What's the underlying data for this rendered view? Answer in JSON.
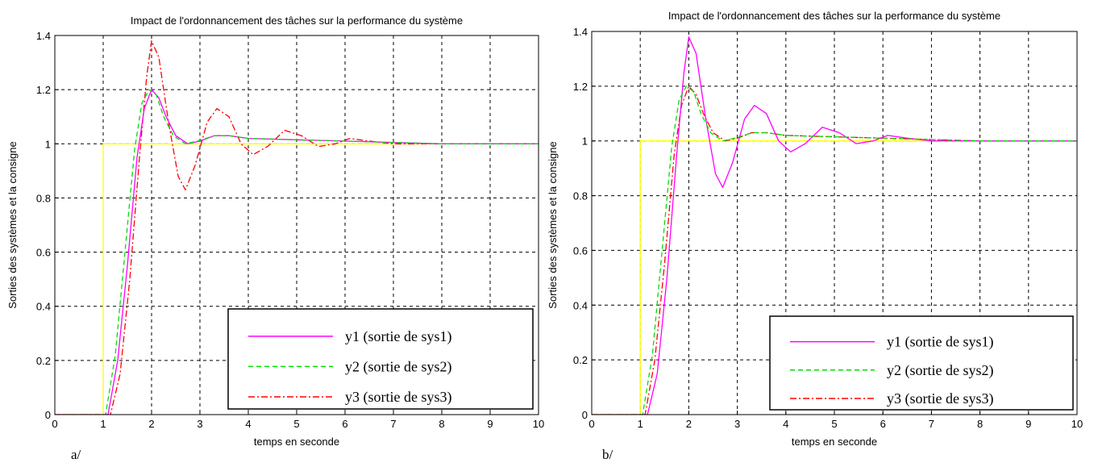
{
  "chart_data": [
    {
      "type": "line",
      "panel_label": "a/",
      "title": "Impact de l'ordonnancement des tâches sur la performance du système",
      "xlabel": "temps en seconde",
      "ylabel": "Sorties des systèmes et la consigne",
      "xlim": [
        0,
        10
      ],
      "ylim": [
        0,
        1.4
      ],
      "xticks": [
        "0",
        "1",
        "2",
        "3",
        "4",
        "5",
        "6",
        "7",
        "8",
        "9",
        "10"
      ],
      "yticks": [
        "0",
        "0.2",
        "0.4",
        "0.6",
        "0.8",
        "1",
        "1.2",
        "1.4"
      ],
      "grid": true,
      "legend_position": "bottom-right",
      "series": [
        {
          "name": "y1 (sortie de sys1)",
          "color": "#ff00ff",
          "style": "solid",
          "x": [
            0,
            1.1,
            1.3,
            1.5,
            1.7,
            1.85,
            2.0,
            2.15,
            2.3,
            2.5,
            2.75,
            3.0,
            3.3,
            3.6,
            4.0,
            5.0,
            6.0,
            7.0,
            8.0,
            10.0
          ],
          "y": [
            0,
            0,
            0.2,
            0.55,
            0.95,
            1.13,
            1.2,
            1.17,
            1.1,
            1.03,
            1.0,
            1.01,
            1.03,
            1.03,
            1.02,
            1.015,
            1.01,
            1.005,
            1.0,
            1.0
          ]
        },
        {
          "name": "y2 (sortie de sys2)",
          "color": "#00dd00",
          "style": "dashed",
          "x": [
            0,
            1.05,
            1.25,
            1.45,
            1.65,
            1.8,
            1.95,
            2.1,
            2.25,
            2.45,
            2.7,
            2.95,
            3.3,
            3.6,
            4.0,
            5.0,
            6.0,
            7.0,
            8.0,
            10.0
          ],
          "y": [
            0,
            0,
            0.22,
            0.6,
            0.98,
            1.15,
            1.2,
            1.18,
            1.1,
            1.03,
            1.0,
            1.01,
            1.03,
            1.03,
            1.02,
            1.015,
            1.01,
            1.005,
            1.0,
            1.0
          ]
        },
        {
          "name": "y3 (sortie de sys3)",
          "color": "#ff0000",
          "style": "dashdot",
          "x": [
            0,
            1.15,
            1.35,
            1.55,
            1.75,
            1.9,
            2.0,
            2.15,
            2.35,
            2.55,
            2.7,
            2.9,
            3.15,
            3.35,
            3.6,
            3.85,
            4.1,
            4.4,
            4.75,
            5.1,
            5.45,
            5.8,
            6.1,
            6.5,
            7.0,
            8.0,
            10.0
          ],
          "y": [
            0,
            0,
            0.15,
            0.5,
            0.95,
            1.25,
            1.38,
            1.32,
            1.08,
            0.88,
            0.83,
            0.92,
            1.08,
            1.13,
            1.1,
            1.0,
            0.96,
            0.99,
            1.05,
            1.03,
            0.99,
            1.0,
            1.02,
            1.01,
            1.0,
            1.0,
            1.0
          ]
        },
        {
          "name": "consigne",
          "color": "#ffff00",
          "style": "solid",
          "x": [
            0,
            1,
            1,
            10
          ],
          "y": [
            0,
            0,
            1,
            1
          ]
        }
      ]
    },
    {
      "type": "line",
      "panel_label": "b/",
      "title": "Impact de l'ordonnancement des tâches sur la performance du système",
      "xlabel": "temps en seconde",
      "ylabel": "Sorties des systèmes et la consigne",
      "xlim": [
        0,
        10
      ],
      "ylim": [
        0,
        1.4
      ],
      "xticks": [
        "0",
        "1",
        "2",
        "3",
        "4",
        "5",
        "6",
        "7",
        "8",
        "9",
        "10"
      ],
      "yticks": [
        "0",
        "0.2",
        "0.4",
        "0.6",
        "0.8",
        "1",
        "1.2",
        "1.4"
      ],
      "grid": true,
      "legend_position": "bottom-right",
      "series": [
        {
          "name": "y1 (sortie de sys1)",
          "color": "#ff00ff",
          "style": "solid",
          "x": [
            0,
            1.15,
            1.35,
            1.55,
            1.75,
            1.9,
            2.0,
            2.15,
            2.35,
            2.55,
            2.7,
            2.9,
            3.15,
            3.35,
            3.6,
            3.85,
            4.1,
            4.4,
            4.75,
            5.1,
            5.45,
            5.8,
            6.1,
            6.5,
            7.0,
            8.0,
            10.0
          ],
          "y": [
            0,
            0,
            0.15,
            0.5,
            0.95,
            1.25,
            1.38,
            1.32,
            1.08,
            0.88,
            0.83,
            0.92,
            1.08,
            1.13,
            1.1,
            1.0,
            0.96,
            0.99,
            1.05,
            1.03,
            0.99,
            1.0,
            1.02,
            1.01,
            1.0,
            1.0,
            1.0
          ]
        },
        {
          "name": "y2 (sortie de sys2)",
          "color": "#00dd00",
          "style": "dashed",
          "x": [
            0,
            1.05,
            1.25,
            1.45,
            1.65,
            1.8,
            1.95,
            2.1,
            2.25,
            2.45,
            2.7,
            2.95,
            3.3,
            3.6,
            4.0,
            5.0,
            6.0,
            7.0,
            8.0,
            10.0
          ],
          "y": [
            0,
            0,
            0.22,
            0.6,
            0.98,
            1.15,
            1.2,
            1.18,
            1.1,
            1.03,
            1.0,
            1.01,
            1.03,
            1.03,
            1.02,
            1.015,
            1.01,
            1.005,
            1.0,
            1.0
          ]
        },
        {
          "name": "y3 (sortie de sys3)",
          "color": "#ff0000",
          "style": "dashdot",
          "x": [
            0,
            1.1,
            1.3,
            1.5,
            1.7,
            1.85,
            2.0,
            2.15,
            2.3,
            2.5,
            2.75,
            3.0,
            3.3,
            3.6,
            4.0,
            5.0,
            6.0,
            7.0,
            8.0,
            10.0
          ],
          "y": [
            0,
            0,
            0.2,
            0.55,
            0.95,
            1.13,
            1.2,
            1.17,
            1.1,
            1.03,
            1.0,
            1.01,
            1.03,
            1.03,
            1.02,
            1.015,
            1.01,
            1.005,
            1.0,
            1.0
          ]
        },
        {
          "name": "consigne",
          "color": "#ffff00",
          "style": "solid",
          "x": [
            0,
            1,
            1,
            10
          ],
          "y": [
            0,
            0,
            1,
            1
          ]
        }
      ]
    }
  ]
}
